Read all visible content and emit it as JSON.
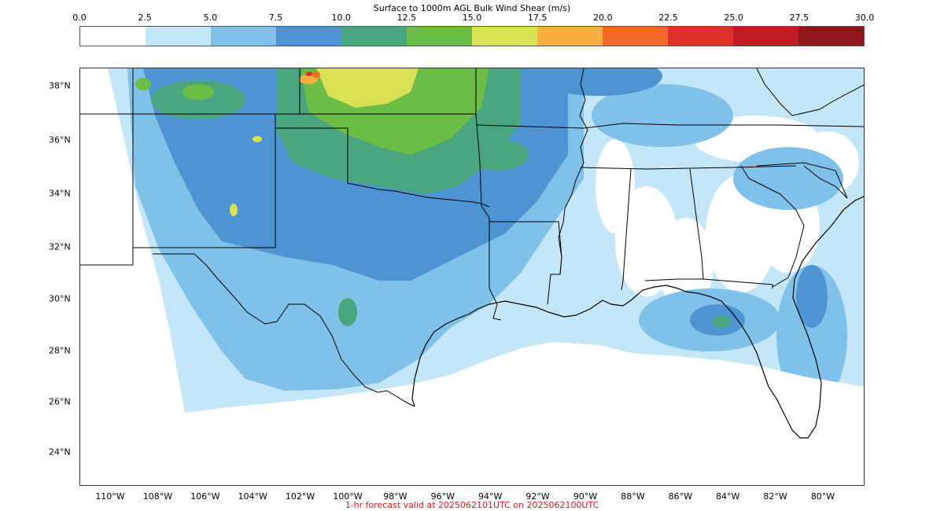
{
  "colorbar": {
    "title": "Surface to 1000m AGL Bulk Wind Shear (m/s)",
    "ticks": [
      "0.0",
      "2.5",
      "5.0",
      "7.5",
      "10.0",
      "12.5",
      "15.0",
      "17.5",
      "20.0",
      "22.5",
      "25.0",
      "27.5",
      "30.0"
    ],
    "colors": [
      "#ffffff",
      "#c3e6f8",
      "#80c1ea",
      "#4f94d2",
      "#48a57d",
      "#6bbd46",
      "#d8e054",
      "#f8b043",
      "#f26a2a",
      "#e0302a",
      "#be1c24",
      "#8e1519"
    ]
  },
  "axes": {
    "lat_labels": [
      "38°N",
      "36°N",
      "34°N",
      "32°N",
      "30°N",
      "28°N",
      "26°N",
      "24°N"
    ],
    "lon_labels": [
      "110°W",
      "108°W",
      "106°W",
      "104°W",
      "102°W",
      "100°W",
      "98°W",
      "96°W",
      "94°W",
      "92°W",
      "90°W",
      "88°W",
      "86°W",
      "84°W",
      "82°W",
      "80°W"
    ]
  },
  "footer": "1-hr forecast valid at 2025062101UTC on 2025062100UTC"
}
